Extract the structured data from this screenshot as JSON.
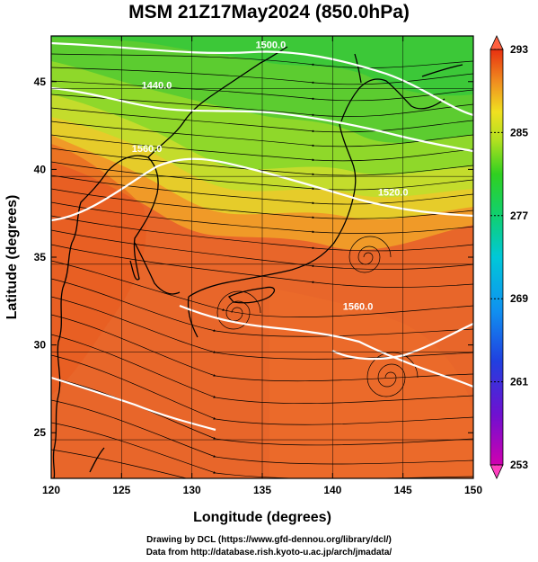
{
  "title": "MSM 21Z17May2024 (850.0hPa)",
  "credits": {
    "line1": "Drawing by DCL (https://www.gfd-dennou.org/library/dcl/)",
    "line2": "Data from http://database.rish.kyoto-u.ac.jp/arch/jmadata/"
  },
  "chart_data": {
    "type": "heatmap",
    "title": "MSM 21Z17May2024 (850.0hPa)",
    "xlabel": "Longitude (degrees)",
    "ylabel": "Latitude  (degrees)",
    "xlim": [
      120,
      150
    ],
    "ylim": [
      22.4,
      47.6
    ],
    "x_ticks": [
      120,
      125,
      130,
      135,
      140,
      145,
      150
    ],
    "y_ticks": [
      25,
      30,
      35,
      40,
      45
    ],
    "grid": true,
    "colorbar": {
      "min": 253,
      "max": 293,
      "tick_labels": [
        293,
        285,
        277,
        269,
        261,
        253
      ],
      "position": "right"
    },
    "contour_labels": [
      {
        "text": "1440.0",
        "lon": 127.5,
        "lat": 44.6
      },
      {
        "text": "1500.0",
        "lon": 135.6,
        "lat": 46.9
      },
      {
        "text": "1560.0",
        "lon": 126.8,
        "lat": 41.0
      },
      {
        "text": "1520.0",
        "lon": 144.3,
        "lat": 38.5
      },
      {
        "text": "1560.0",
        "lon": 141.8,
        "lat": 32.0
      }
    ],
    "circulations": [
      {
        "lon": 132.8,
        "lat": 32.5
      },
      {
        "lon": 142.2,
        "lat": 35.8
      },
      {
        "lon": 143.5,
        "lat": 27.6
      }
    ]
  }
}
